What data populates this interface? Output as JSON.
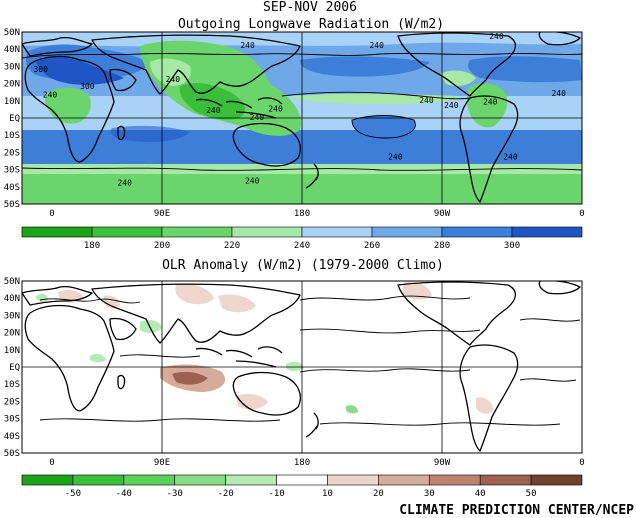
{
  "figure": {
    "period": "SEP-NOV 2006",
    "credit": "CLIMATE PREDICTION CENTER/NCEP"
  },
  "top_map": {
    "title": "Outgoing Longwave Radiation (W/m2)",
    "lat_labels": [
      "50N",
      "40N",
      "30N",
      "20N",
      "10N",
      "EQ",
      "10S",
      "20S",
      "30S",
      "40S",
      "50S"
    ],
    "lon_labels": [
      "0",
      "90E",
      "180",
      "90W",
      "0"
    ],
    "contour_labels": [
      {
        "text": "240",
        "lon": 145,
        "lat": 42
      },
      {
        "text": "240",
        "lon": 228,
        "lat": 42
      },
      {
        "text": "240",
        "lon": 305,
        "lat": 47
      },
      {
        "text": "300",
        "lon": 12,
        "lat": 28
      },
      {
        "text": "300",
        "lon": 42,
        "lat": 18
      },
      {
        "text": "240",
        "lon": 18,
        "lat": 13
      },
      {
        "text": "240",
        "lon": 97,
        "lat": 22
      },
      {
        "text": "240",
        "lon": 123,
        "lat": 4
      },
      {
        "text": "240",
        "lon": 151,
        "lat": 0
      },
      {
        "text": "240",
        "lon": 163,
        "lat": 5
      },
      {
        "text": "240",
        "lon": 260,
        "lat": 10
      },
      {
        "text": "240",
        "lon": 276,
        "lat": 7
      },
      {
        "text": "240",
        "lon": 301,
        "lat": 9
      },
      {
        "text": "240",
        "lon": 345,
        "lat": 14
      },
      {
        "text": "240",
        "lon": 240,
        "lat": -23
      },
      {
        "text": "240",
        "lon": 314,
        "lat": -23
      },
      {
        "text": "240",
        "lon": 66,
        "lat": -38
      },
      {
        "text": "240",
        "lon": 148,
        "lat": -37
      }
    ],
    "colorbar": {
      "labels": [
        "180",
        "200",
        "220",
        "240",
        "260",
        "280",
        "300"
      ],
      "colors": [
        "#1aa31a",
        "#39bf39",
        "#6ad56a",
        "#a6e8a6",
        "#a8d2f6",
        "#6fa8e8",
        "#3d7ed9",
        "#1f55c4"
      ]
    }
  },
  "bottom_map": {
    "title": "OLR Anomaly (W/m2) (1979-2000 Climo)",
    "lat_labels": [
      "50N",
      "40N",
      "30N",
      "20N",
      "10N",
      "EQ",
      "10S",
      "20S",
      "30S",
      "40S",
      "50S"
    ],
    "lon_labels": [
      "0",
      "90E",
      "180",
      "90W",
      "0"
    ],
    "colorbar": {
      "labels": [
        "-50",
        "-40",
        "-30",
        "-20",
        "-10",
        "10",
        "20",
        "30",
        "40",
        "50"
      ],
      "colors": [
        "#1aa31a",
        "#39bf39",
        "#5bd05b",
        "#86dd86",
        "#b3ecb3",
        "#ffffff",
        "#eed6cc",
        "#d6ab9a",
        "#bb8572",
        "#9c6150",
        "#74402e"
      ]
    }
  }
}
